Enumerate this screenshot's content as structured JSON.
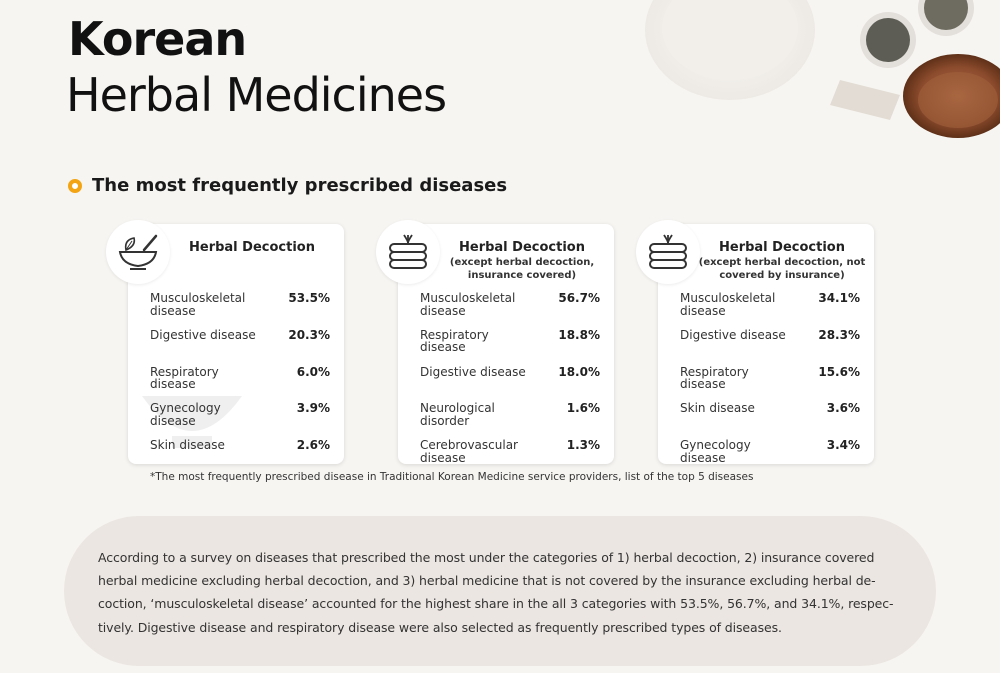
{
  "header": {
    "title_main": "Korean",
    "title_sub": "Herbal Medicines"
  },
  "section": {
    "heading": "The most frequently prescribed diseases"
  },
  "cards": [
    {
      "icon": "mortar-pestle-icon",
      "title": "Herbal Decoction",
      "subtitle": "",
      "items": [
        {
          "name": "Musculoskeletal disease",
          "value": "53.5%"
        },
        {
          "name": "Digestive disease",
          "value": "20.3%"
        },
        {
          "name": "Respiratory disease",
          "value": "6.0%"
        },
        {
          "name": "Gynecology disease",
          "value": "3.9%"
        },
        {
          "name": "Skin disease",
          "value": "2.6%"
        }
      ]
    },
    {
      "icon": "herbal-pouch-icon",
      "title": "Herbal Decoction",
      "subtitle": "(except herbal decoction, insurance covered)",
      "items": [
        {
          "name": "Musculoskeletal disease",
          "value": "56.7%"
        },
        {
          "name": "Respiratory disease",
          "value": "18.8%"
        },
        {
          "name": "Digestive disease",
          "value": "18.0%"
        },
        {
          "name": "Neurological disorder",
          "value": "1.6%"
        },
        {
          "name": "Cerebrovascular disease",
          "value": "1.3%"
        }
      ]
    },
    {
      "icon": "herbal-pouch-icon",
      "title": "Herbal Decoction",
      "subtitle": "(except herbal decoction, not covered by insurance)",
      "items": [
        {
          "name": "Musculoskeletal disease",
          "value": "34.1%"
        },
        {
          "name": "Digestive disease",
          "value": "28.3%"
        },
        {
          "name": "Respiratory disease",
          "value": "15.6%"
        },
        {
          "name": "Skin disease",
          "value": "3.6%"
        },
        {
          "name": "Gynecology disease",
          "value": "3.4%"
        }
      ]
    }
  ],
  "footnote": "*The most frequently prescribed disease in Traditional Korean Medicine service providers, list of the top 5 diseases",
  "summary": "According to a survey on diseases that prescribed the most under the categories of 1) herbal decoction, 2) insurance covered herbal medicine excluding herbal decoction, and 3) herbal medicine that is not covered by the  insurance excluding herbal de-coction, ‘musculoskeletal disease’ accounted for the highest share in the all 3 categories with 53.5%, 56.7%, and 34.1%, respec-tively. Digestive disease and respiratory disease were also selected as frequently prescribed types of diseases.",
  "colors": {
    "accent": "#f3a413",
    "background": "#f7f5f2",
    "summary_bg": "#ebe6e1"
  }
}
